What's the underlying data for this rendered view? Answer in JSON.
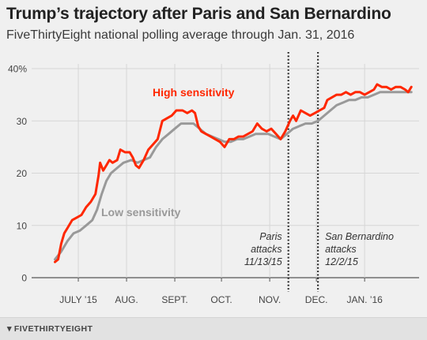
{
  "title": "Trump’s trajectory after Paris and San Bernardino",
  "subtitle": "FiveThirtyEight national polling average through Jan. 31, 2016",
  "footer": {
    "logo_icon": "fox-icon",
    "logo_text": "FIVETHIRTYEIGHT"
  },
  "chart_data": {
    "type": "line",
    "ylim": [
      0,
      40
    ],
    "y_ticks": [
      {
        "value": 0,
        "label": "0"
      },
      {
        "value": 10,
        "label": "10"
      },
      {
        "value": 20,
        "label": "20"
      },
      {
        "value": 30,
        "label": "30"
      },
      {
        "value": 40,
        "label": "40%"
      }
    ],
    "x_ticks": [
      {
        "date": "2015-07-01",
        "label": "JULY ’15"
      },
      {
        "date": "2015-08-01",
        "label": "AUG."
      },
      {
        "date": "2015-09-01",
        "label": "SEPT."
      },
      {
        "date": "2015-10-01",
        "label": "OCT."
      },
      {
        "date": "2015-11-01",
        "label": "NOV."
      },
      {
        "date": "2015-12-01",
        "label": "DEC."
      },
      {
        "date": "2016-01-01",
        "label": "JAN. ’16"
      }
    ],
    "grid": true,
    "series": [
      {
        "name": "High sensitivity",
        "color": "#ff2700",
        "points": [
          [
            "2015-06-16",
            3.0
          ],
          [
            "2015-06-18",
            3.5
          ],
          [
            "2015-06-20",
            6.5
          ],
          [
            "2015-06-22",
            8.5
          ],
          [
            "2015-06-24",
            9.5
          ],
          [
            "2015-06-27",
            11.0
          ],
          [
            "2015-06-30",
            11.5
          ],
          [
            "2015-07-03",
            12.0
          ],
          [
            "2015-07-06",
            13.5
          ],
          [
            "2015-07-09",
            14.5
          ],
          [
            "2015-07-12",
            16.0
          ],
          [
            "2015-07-14",
            19.5
          ],
          [
            "2015-07-15",
            22.0
          ],
          [
            "2015-07-17",
            20.5
          ],
          [
            "2015-07-19",
            21.5
          ],
          [
            "2015-07-21",
            22.5
          ],
          [
            "2015-07-23",
            22.0
          ],
          [
            "2015-07-26",
            22.5
          ],
          [
            "2015-07-28",
            24.5
          ],
          [
            "2015-07-31",
            24.0
          ],
          [
            "2015-08-03",
            24.0
          ],
          [
            "2015-08-05",
            23.0
          ],
          [
            "2015-08-07",
            21.5
          ],
          [
            "2015-08-09",
            21.0
          ],
          [
            "2015-08-12",
            22.5
          ],
          [
            "2015-08-15",
            24.5
          ],
          [
            "2015-08-18",
            25.5
          ],
          [
            "2015-08-21",
            26.5
          ],
          [
            "2015-08-24",
            30.0
          ],
          [
            "2015-08-27",
            30.5
          ],
          [
            "2015-08-30",
            31.0
          ],
          [
            "2015-09-02",
            32.0
          ],
          [
            "2015-09-06",
            32.0
          ],
          [
            "2015-09-09",
            31.5
          ],
          [
            "2015-09-12",
            32.0
          ],
          [
            "2015-09-14",
            31.5
          ],
          [
            "2015-09-16",
            29.0
          ],
          [
            "2015-09-18",
            28.0
          ],
          [
            "2015-09-21",
            27.5
          ],
          [
            "2015-09-24",
            27.0
          ],
          [
            "2015-09-27",
            26.5
          ],
          [
            "2015-09-30",
            26.0
          ],
          [
            "2015-10-03",
            25.0
          ],
          [
            "2015-10-06",
            26.5
          ],
          [
            "2015-10-09",
            26.5
          ],
          [
            "2015-10-12",
            27.0
          ],
          [
            "2015-10-15",
            27.0
          ],
          [
            "2015-10-18",
            27.5
          ],
          [
            "2015-10-21",
            28.0
          ],
          [
            "2015-10-24",
            29.5
          ],
          [
            "2015-10-27",
            28.5
          ],
          [
            "2015-10-30",
            28.0
          ],
          [
            "2015-11-02",
            28.5
          ],
          [
            "2015-11-05",
            27.5
          ],
          [
            "2015-11-08",
            26.5
          ],
          [
            "2015-11-11",
            28.0
          ],
          [
            "2015-11-14",
            30.0
          ],
          [
            "2015-11-16",
            31.0
          ],
          [
            "2015-11-18",
            30.0
          ],
          [
            "2015-11-21",
            32.0
          ],
          [
            "2015-11-24",
            31.5
          ],
          [
            "2015-11-27",
            31.0
          ],
          [
            "2015-11-30",
            31.5
          ],
          [
            "2015-12-03",
            32.0
          ],
          [
            "2015-12-06",
            32.5
          ],
          [
            "2015-12-08",
            34.0
          ],
          [
            "2015-12-11",
            34.5
          ],
          [
            "2015-12-14",
            35.0
          ],
          [
            "2015-12-17",
            35.0
          ],
          [
            "2015-12-20",
            35.5
          ],
          [
            "2015-12-23",
            35.0
          ],
          [
            "2015-12-26",
            35.5
          ],
          [
            "2015-12-29",
            35.5
          ],
          [
            "2016-01-01",
            35.0
          ],
          [
            "2016-01-04",
            35.5
          ],
          [
            "2016-01-07",
            36.0
          ],
          [
            "2016-01-09",
            37.0
          ],
          [
            "2016-01-12",
            36.5
          ],
          [
            "2016-01-15",
            36.5
          ],
          [
            "2016-01-18",
            36.0
          ],
          [
            "2016-01-21",
            36.5
          ],
          [
            "2016-01-24",
            36.5
          ],
          [
            "2016-01-27",
            36.0
          ],
          [
            "2016-01-29",
            35.5
          ],
          [
            "2016-01-31",
            36.5
          ]
        ]
      },
      {
        "name": "Low sensitivity",
        "color": "#999999",
        "points": [
          [
            "2015-06-16",
            3.5
          ],
          [
            "2015-06-20",
            5.0
          ],
          [
            "2015-06-24",
            7.0
          ],
          [
            "2015-06-28",
            8.5
          ],
          [
            "2015-07-02",
            9.0
          ],
          [
            "2015-07-06",
            10.0
          ],
          [
            "2015-07-10",
            11.0
          ],
          [
            "2015-07-13",
            13.0
          ],
          [
            "2015-07-16",
            16.0
          ],
          [
            "2015-07-19",
            18.5
          ],
          [
            "2015-07-22",
            20.0
          ],
          [
            "2015-07-26",
            21.0
          ],
          [
            "2015-07-30",
            22.0
          ],
          [
            "2015-08-04",
            22.5
          ],
          [
            "2015-08-08",
            22.0
          ],
          [
            "2015-08-12",
            22.5
          ],
          [
            "2015-08-16",
            23.0
          ],
          [
            "2015-08-20",
            25.0
          ],
          [
            "2015-08-24",
            26.5
          ],
          [
            "2015-08-28",
            27.5
          ],
          [
            "2015-09-01",
            28.5
          ],
          [
            "2015-09-05",
            29.5
          ],
          [
            "2015-09-09",
            29.5
          ],
          [
            "2015-09-13",
            29.5
          ],
          [
            "2015-09-17",
            28.5
          ],
          [
            "2015-09-21",
            27.5
          ],
          [
            "2015-09-25",
            27.0
          ],
          [
            "2015-09-29",
            26.5
          ],
          [
            "2015-10-03",
            26.0
          ],
          [
            "2015-10-07",
            26.0
          ],
          [
            "2015-10-11",
            26.5
          ],
          [
            "2015-10-15",
            26.5
          ],
          [
            "2015-10-19",
            27.0
          ],
          [
            "2015-10-23",
            27.5
          ],
          [
            "2015-10-27",
            27.5
          ],
          [
            "2015-10-31",
            27.5
          ],
          [
            "2015-11-04",
            27.0
          ],
          [
            "2015-11-08",
            26.5
          ],
          [
            "2015-11-12",
            27.5
          ],
          [
            "2015-11-16",
            28.5
          ],
          [
            "2015-11-20",
            29.0
          ],
          [
            "2015-11-24",
            29.5
          ],
          [
            "2015-11-28",
            29.5
          ],
          [
            "2015-12-02",
            30.0
          ],
          [
            "2015-12-06",
            31.0
          ],
          [
            "2015-12-10",
            32.0
          ],
          [
            "2015-12-14",
            33.0
          ],
          [
            "2015-12-18",
            33.5
          ],
          [
            "2015-12-22",
            34.0
          ],
          [
            "2015-12-26",
            34.0
          ],
          [
            "2015-12-30",
            34.5
          ],
          [
            "2016-01-03",
            34.5
          ],
          [
            "2016-01-07",
            35.0
          ],
          [
            "2016-01-11",
            35.5
          ],
          [
            "2016-01-15",
            35.5
          ],
          [
            "2016-01-19",
            35.5
          ],
          [
            "2016-01-23",
            35.5
          ],
          [
            "2016-01-27",
            35.5
          ],
          [
            "2016-01-31",
            35.5
          ]
        ]
      }
    ],
    "annotations": [
      {
        "date": "2015-11-13",
        "lines": [
          "Paris",
          "attacks",
          "11/13/15"
        ],
        "align": "left"
      },
      {
        "date": "2015-12-02",
        "lines": [
          "San Bernardino",
          "attacks",
          "12/2/15"
        ],
        "align": "right"
      }
    ]
  }
}
